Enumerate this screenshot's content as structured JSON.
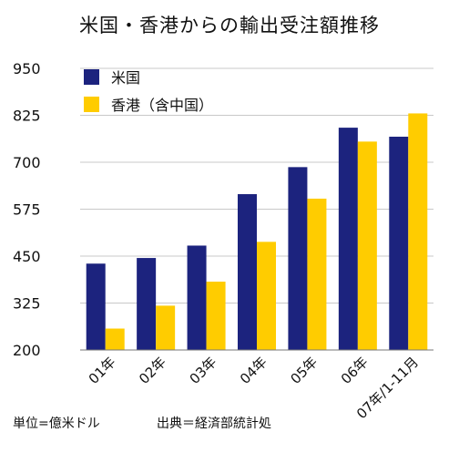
{
  "chart_data": {
    "type": "bar",
    "title": "米国・香港からの輸出受注額推移",
    "categories": [
      "01年",
      "02年",
      "03年",
      "04年",
      "05年",
      "06年",
      "07年/1-11月"
    ],
    "series": [
      {
        "name": "米国",
        "color": "#1c237e",
        "values": [
          430,
          445,
          478,
          615,
          687,
          792,
          768
        ]
      },
      {
        "name": "香港（含中国）",
        "color": "#ffcc00",
        "values": [
          257,
          318,
          382,
          488,
          603,
          755,
          830
        ]
      }
    ],
    "yticks": [
      200,
      325,
      450,
      575,
      700,
      825,
      950
    ],
    "ylim": [
      200,
      950
    ],
    "grid": true,
    "legend": "top-left"
  },
  "footnotes": {
    "unit": "単位=億米ドル",
    "source": "出典＝経済部統計処"
  }
}
